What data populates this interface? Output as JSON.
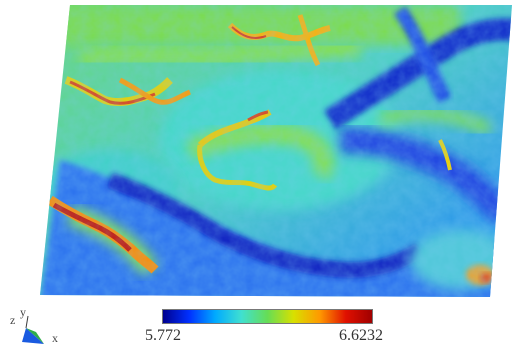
{
  "viewer": {
    "colormap": [
      "#00008f",
      "#0030ff",
      "#00aaff",
      "#40e0d0",
      "#66dd55",
      "#d8e000",
      "#ff9900",
      "#e01000",
      "#a00000"
    ],
    "surface_colors": {
      "low": "#0a2fd0",
      "mid": "#35c8d8",
      "high": "#6fd860",
      "peak": "#e23010"
    }
  },
  "colorbar": {
    "min_label": "5.772",
    "max_label": "6.6232"
  },
  "axis_triad": {
    "x_label": "x",
    "y_label": "y",
    "z_label": "z",
    "icons": [
      "axis-triad-icon"
    ]
  }
}
